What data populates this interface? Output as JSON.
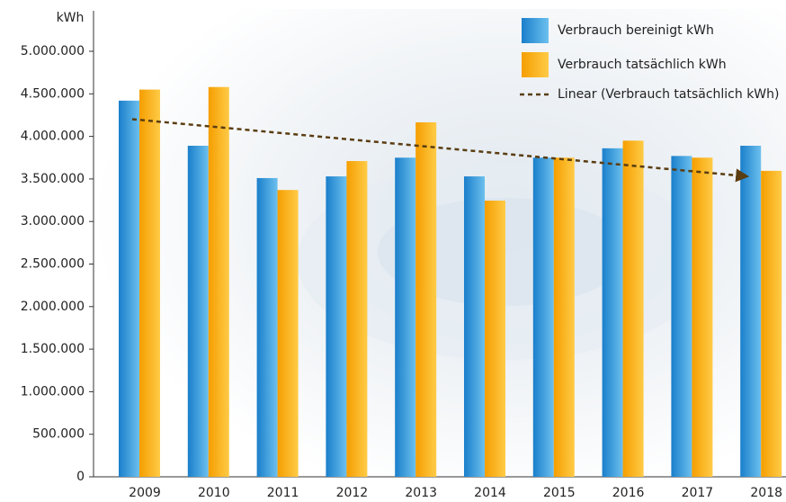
{
  "chart_data": {
    "type": "bar",
    "y_label": "kWh",
    "categories": [
      "2009",
      "2010",
      "2011",
      "2012",
      "2013",
      "2014",
      "2015",
      "2016",
      "2017",
      "2018"
    ],
    "series": [
      {
        "name": "Verbrauch bereinigt kWh",
        "color": "#2a8fd6",
        "values": [
          4420000,
          3890000,
          3510000,
          3530000,
          3750000,
          3530000,
          3750000,
          3860000,
          3770000,
          3890000
        ]
      },
      {
        "name": "Verbrauch tatsächlich kWh",
        "color": "#f9a800",
        "values": [
          4550000,
          4580000,
          3370000,
          3710000,
          4165000,
          3245000,
          3750000,
          3950000,
          3750000,
          3595000
        ]
      }
    ],
    "trendline": {
      "name": "Linear (Verbrauch tatsächlich kWh)",
      "color": "#5a3d12"
    },
    "ylim": [
      0,
      5000000
    ],
    "yticks": [
      0,
      {
        "value": 500000,
        "label": "500.000"
      },
      {
        "value": 1000000,
        "label": "1.000.000"
      },
      {
        "value": 1500000,
        "label": "1.500.000"
      },
      {
        "value": 2000000,
        "label": "2.000.000"
      },
      {
        "value": 2500000,
        "label": "2.500.000"
      },
      {
        "value": 3000000,
        "label": "3.000.000"
      },
      {
        "value": 3500000,
        "label": "3.500.000"
      },
      {
        "value": 4000000,
        "label": "4.000.000"
      },
      {
        "value": 4500000,
        "label": "4.500.000"
      },
      {
        "value": 5000000,
        "label": "5.000.000"
      }
    ],
    "grid": false,
    "legend": "top-right"
  }
}
